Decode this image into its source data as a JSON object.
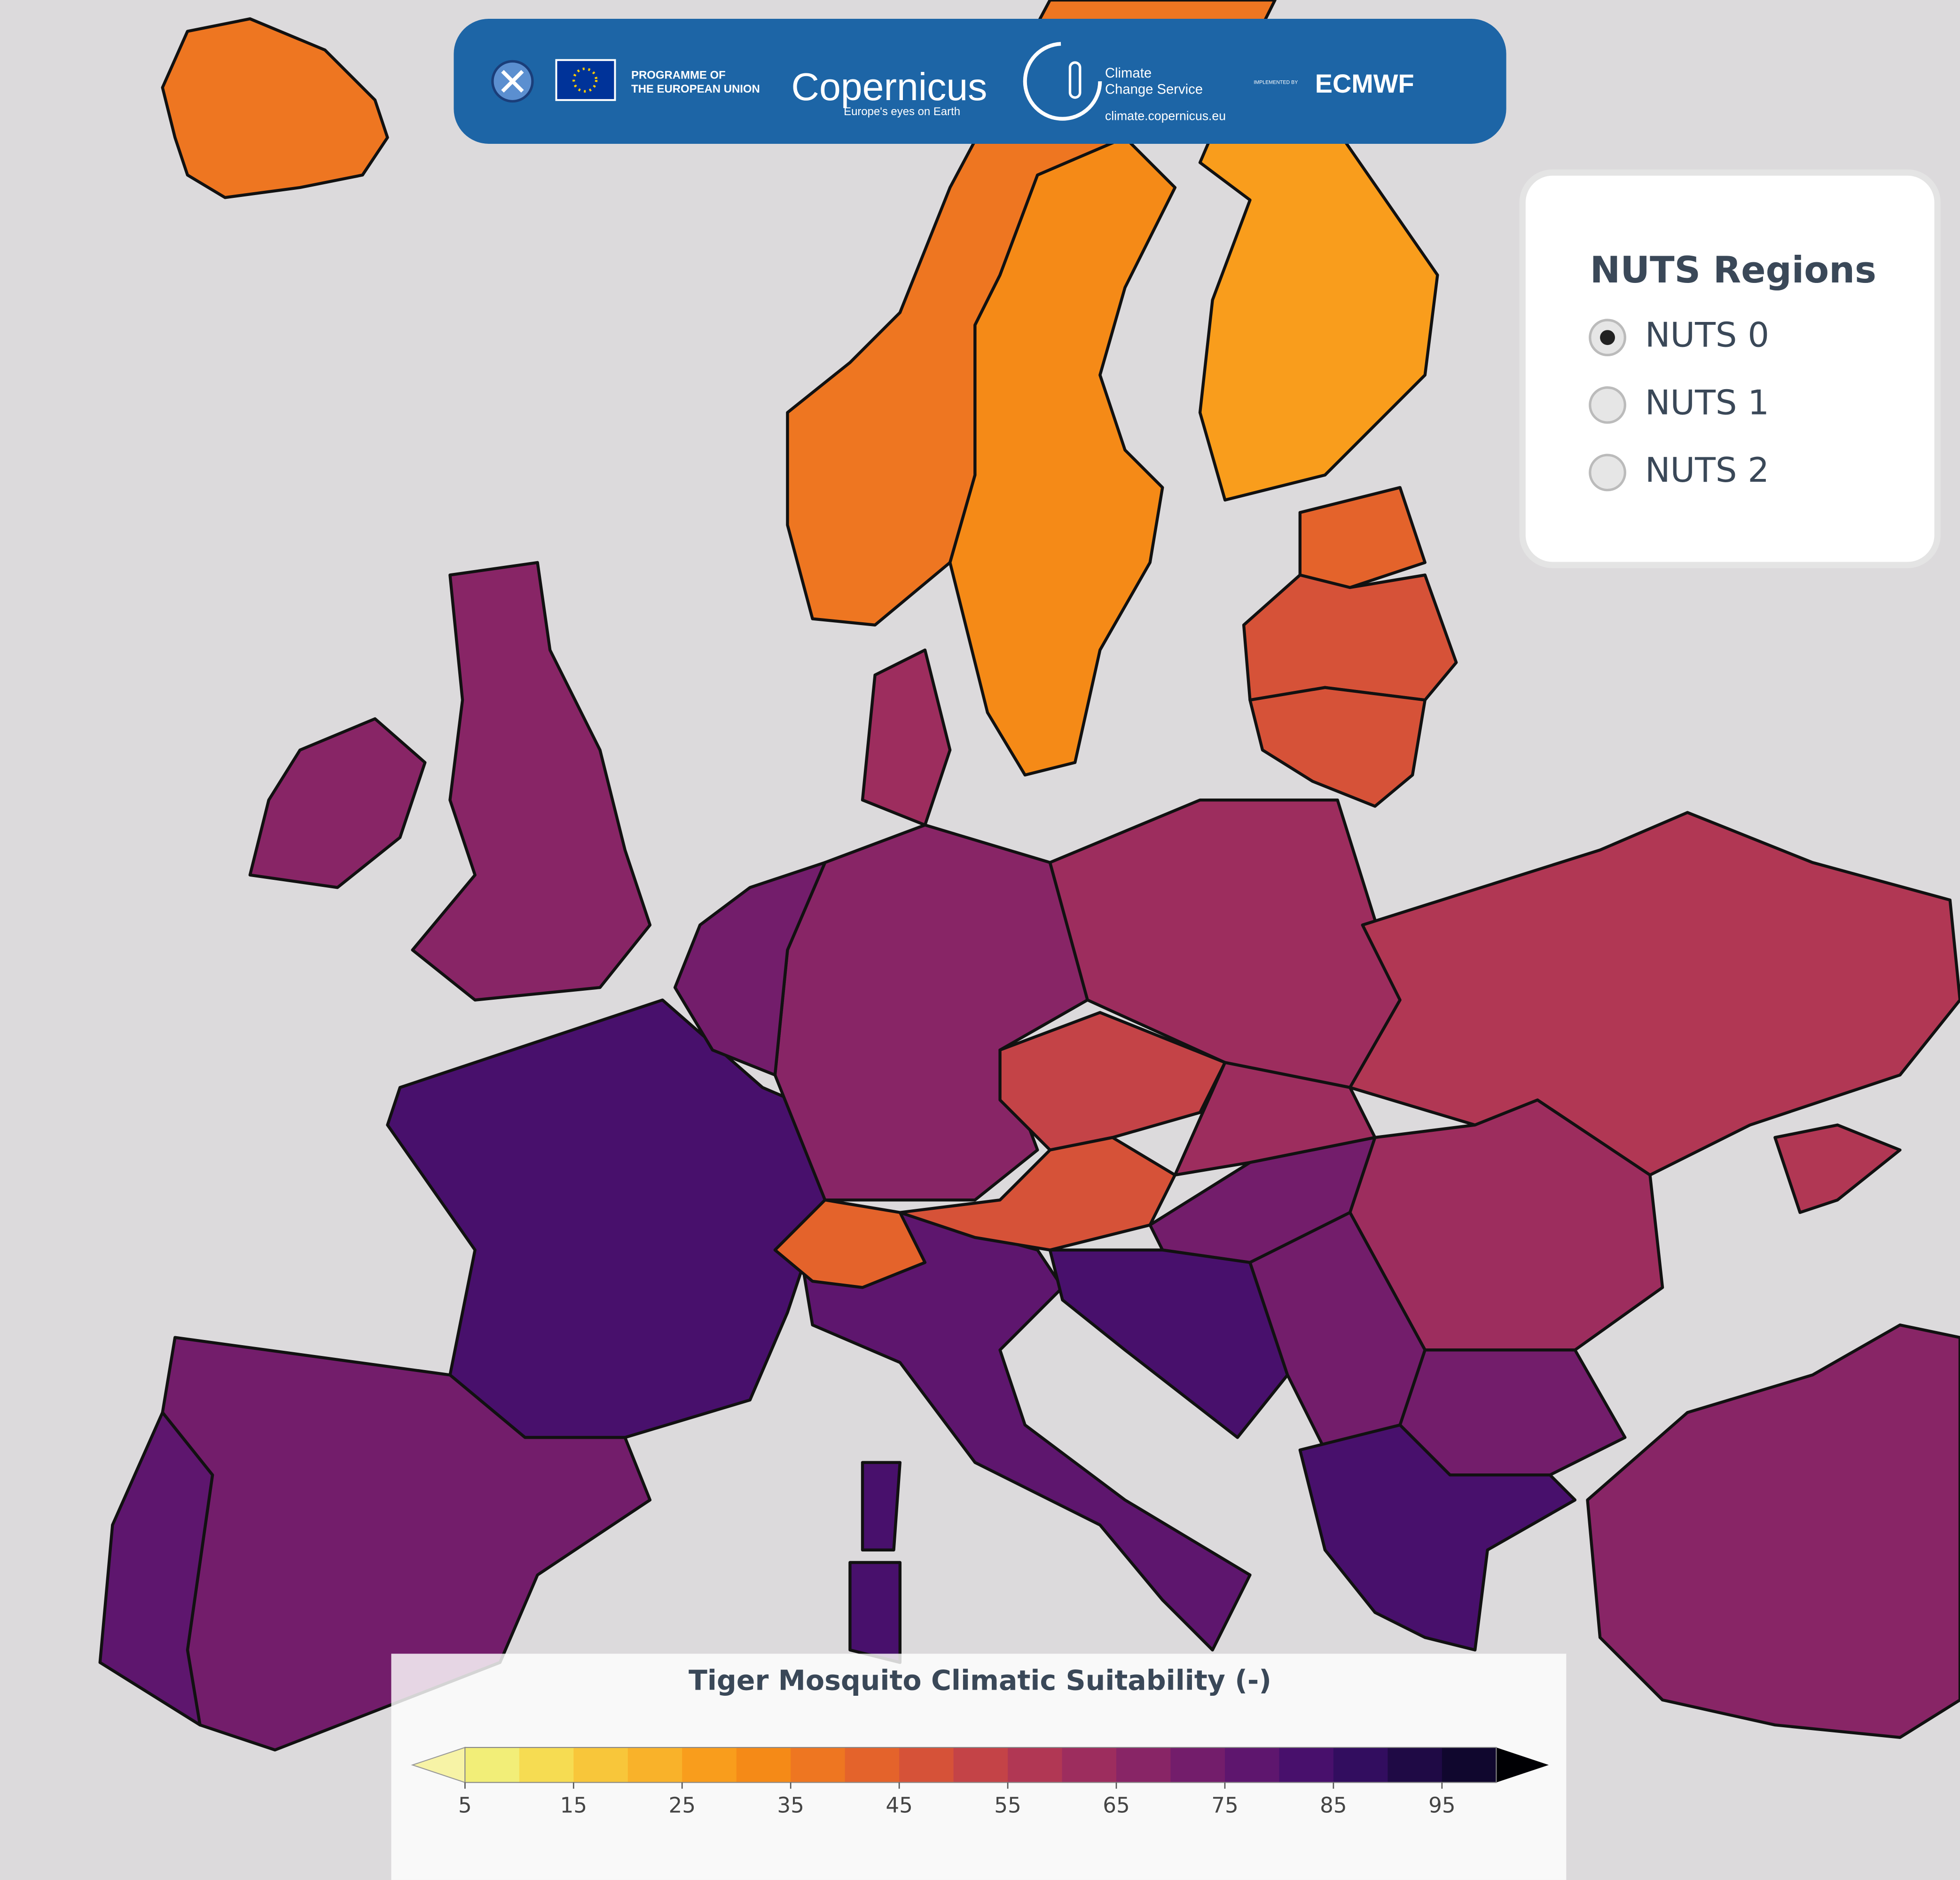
{
  "header": {
    "programme": [
      "PROGRAMME OF",
      "THE EUROPEAN UNION"
    ],
    "brand": "Copernicus",
    "tagline": "Europe's eyes on Earth",
    "service": [
      "Climate",
      "Change Service"
    ],
    "url": "climate.copernicus.eu",
    "implemented": "IMPLEMENTED BY",
    "partner": "ECMWF"
  },
  "legend": {
    "title": "NUTS Regions",
    "options": [
      "NUTS 0",
      "NUTS 1",
      "NUTS 2"
    ],
    "selected": 0
  },
  "colorbar": {
    "title": "Tiger Mosquito Climatic Suitability (-)",
    "range": [
      5,
      100
    ],
    "colors": [
      "#f2ee78",
      "#f6dc52",
      "#f8c63a",
      "#f9b22a",
      "#f99d1c",
      "#f58a17",
      "#ee7621",
      "#e4632b",
      "#d65238",
      "#c44347",
      "#b13754",
      "#9d2d5e",
      "#882566",
      "#731d6b",
      "#5e166e",
      "#48106c",
      "#320d5f",
      "#1f0a45",
      "#10072e"
    ],
    "under_color": "#f7f3a6",
    "over_color": "#000004",
    "ticks": [
      5,
      15,
      25,
      35,
      45,
      55,
      65,
      75,
      85,
      95
    ]
  }
}
